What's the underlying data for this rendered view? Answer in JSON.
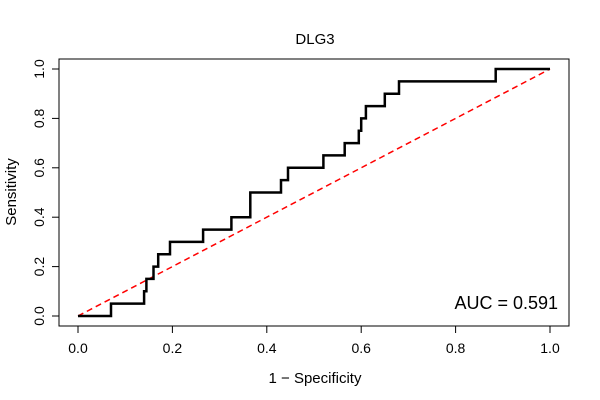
{
  "chart_data": {
    "type": "line",
    "title": "DLG3",
    "xlabel": "1 − Specificity",
    "ylabel": "Sensitivity",
    "xlim": [
      0,
      1
    ],
    "ylim": [
      0,
      1
    ],
    "x_ticks": [
      "0.0",
      "0.2",
      "0.4",
      "0.6",
      "0.8",
      "1.0"
    ],
    "y_ticks": [
      "0.0",
      "0.2",
      "0.4",
      "0.6",
      "0.8",
      "1.0"
    ],
    "annotation": "AUC = 0.591",
    "grid": false,
    "colors": {
      "roc": "#000000",
      "reference": "#ff0000"
    },
    "series": [
      {
        "values": [
          [
            0.0,
            0.0
          ],
          [
            0.07,
            0.0
          ],
          [
            0.07,
            0.05
          ],
          [
            0.14,
            0.05
          ],
          [
            0.14,
            0.1
          ],
          [
            0.145,
            0.1
          ],
          [
            0.145,
            0.15
          ],
          [
            0.16,
            0.15
          ],
          [
            0.16,
            0.2
          ],
          [
            0.17,
            0.2
          ],
          [
            0.17,
            0.25
          ],
          [
            0.195,
            0.25
          ],
          [
            0.195,
            0.3
          ],
          [
            0.265,
            0.3
          ],
          [
            0.265,
            0.35
          ],
          [
            0.325,
            0.35
          ],
          [
            0.325,
            0.4
          ],
          [
            0.365,
            0.4
          ],
          [
            0.365,
            0.5
          ],
          [
            0.43,
            0.5
          ],
          [
            0.43,
            0.55
          ],
          [
            0.445,
            0.55
          ],
          [
            0.445,
            0.6
          ],
          [
            0.52,
            0.6
          ],
          [
            0.52,
            0.65
          ],
          [
            0.565,
            0.65
          ],
          [
            0.565,
            0.7
          ],
          [
            0.595,
            0.7
          ],
          [
            0.595,
            0.75
          ],
          [
            0.6,
            0.75
          ],
          [
            0.6,
            0.8
          ],
          [
            0.61,
            0.8
          ],
          [
            0.61,
            0.85
          ],
          [
            0.65,
            0.85
          ],
          [
            0.65,
            0.9
          ],
          [
            0.68,
            0.9
          ],
          [
            0.68,
            0.95
          ],
          [
            0.885,
            0.95
          ],
          [
            0.885,
            1.0
          ],
          [
            1.0,
            1.0
          ]
        ]
      },
      {
        "values": [
          [
            0,
            0
          ],
          [
            1,
            1
          ]
        ]
      }
    ]
  }
}
